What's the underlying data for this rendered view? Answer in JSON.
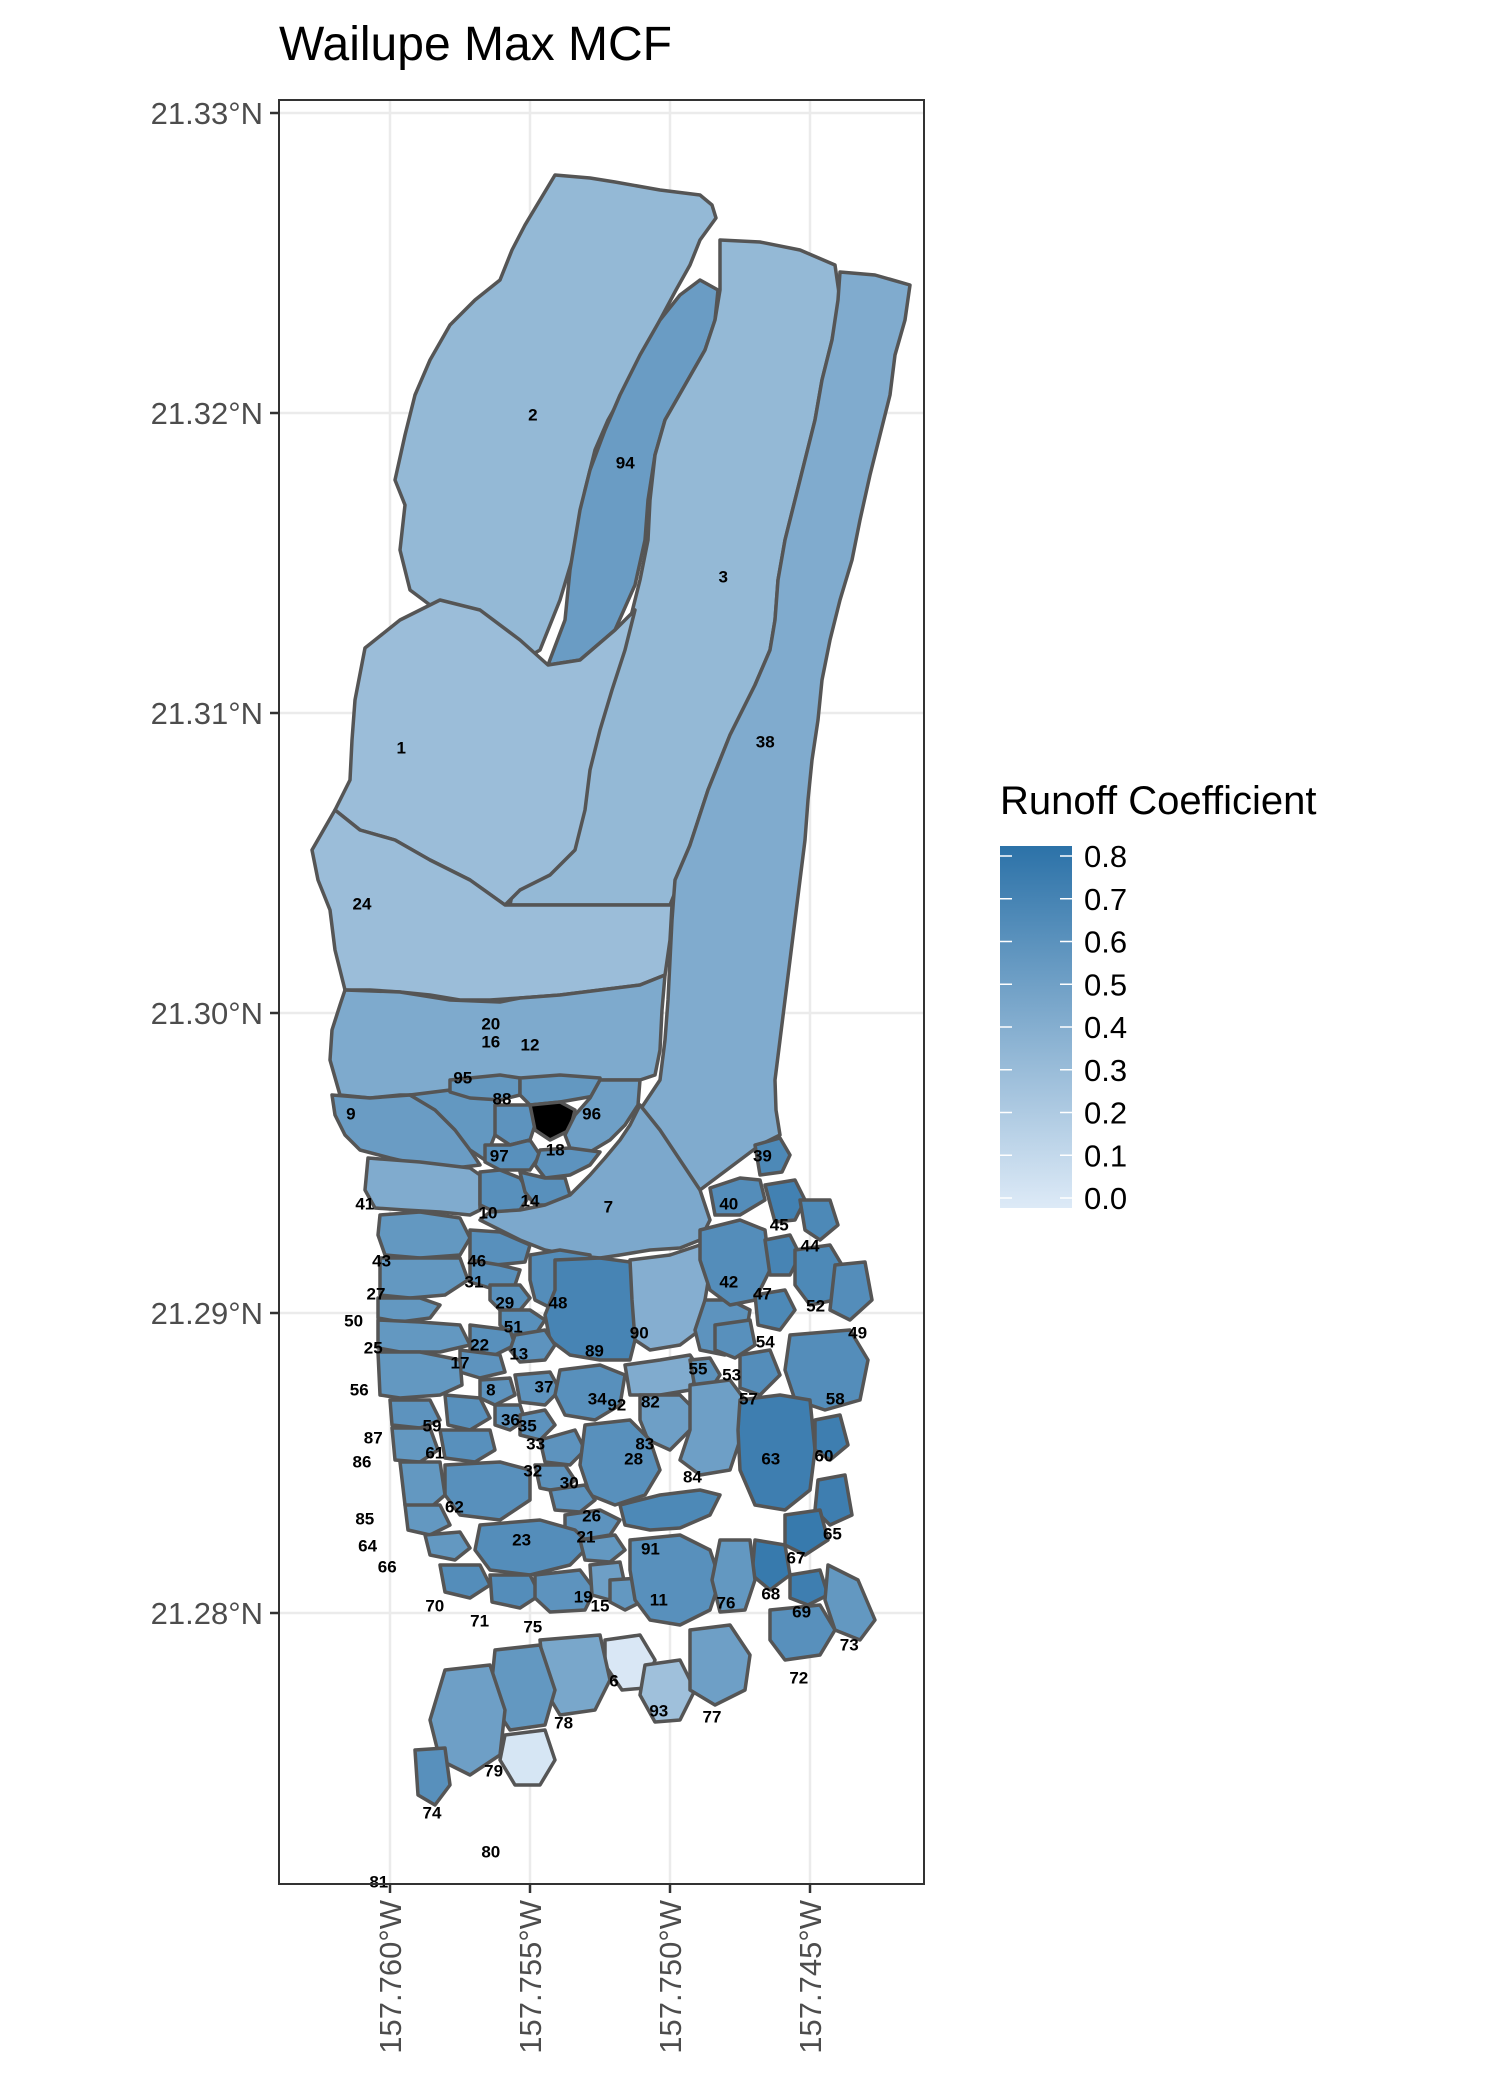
{
  "title": "Wailupe Max MCF",
  "axes": {
    "y_ticks": [
      "21.33°N",
      "21.32°N",
      "21.31°N",
      "21.30°N",
      "21.29°N",
      "21.28°N"
    ],
    "x_ticks": [
      "157.760°W",
      "157.755°W",
      "157.750°W",
      "157.745°W"
    ]
  },
  "legend": {
    "title": "Runoff Coefficient",
    "labels": [
      "0.8",
      "0.7",
      "0.6",
      "0.5",
      "0.4",
      "0.3",
      "0.2",
      "0.1",
      "0.0"
    ],
    "color_low": "#ddeaf7",
    "color_high": "#2c72a8"
  },
  "chart_data": {
    "type": "choropleth",
    "title": "Wailupe Max MCF",
    "value_label": "Runoff Coefficient",
    "lat_range": [
      21.2715,
      21.3305
    ],
    "lon_range": [
      -157.7641,
      -157.7418
    ],
    "color_scale": {
      "min": 0.0,
      "max": 0.8,
      "low": "#ddeaf7",
      "high": "#2c72a8"
    },
    "regions": [
      {
        "id": "1",
        "value": 0.3,
        "lon": -157.7596,
        "lat": 21.3088
      },
      {
        "id": "2",
        "value": 0.33,
        "lon": -157.7549,
        "lat": 21.3199
      },
      {
        "id": "3",
        "value": 0.33,
        "lon": -157.7481,
        "lat": 21.3145
      },
      {
        "id": "6",
        "value": 0.02,
        "lon": -157.752,
        "lat": 21.2777
      },
      {
        "id": "7",
        "value": 0.44,
        "lon": -157.7522,
        "lat": 21.2935
      },
      {
        "id": "8",
        "value": 0.58,
        "lon": -157.7564,
        "lat": 21.2874
      },
      {
        "id": "9",
        "value": 0.52,
        "lon": -157.7614,
        "lat": 21.2966
      },
      {
        "id": "10",
        "value": 0.6,
        "lon": -157.7565,
        "lat": 21.2933
      },
      {
        "id": "11",
        "value": 0.6,
        "lon": -157.7504,
        "lat": 21.2804
      },
      {
        "id": "12",
        "value": 0.55,
        "lon": -157.755,
        "lat": 21.2989
      },
      {
        "id": "13",
        "value": 0.58,
        "lon": -157.7554,
        "lat": 21.2886
      },
      {
        "id": "14",
        "value": 0.6,
        "lon": -157.755,
        "lat": 21.2937
      },
      {
        "id": "15",
        "value": 0.55,
        "lon": -157.7525,
        "lat": 21.2802
      },
      {
        "id": "16",
        "value": 0.55,
        "lon": -157.7564,
        "lat": 21.299
      },
      {
        "id": "17",
        "value": 0.58,
        "lon": -157.7575,
        "lat": 21.2883
      },
      {
        "id": "18",
        "value": 0.58,
        "lon": -157.7541,
        "lat": 21.2954
      },
      {
        "id": "19",
        "value": 0.5,
        "lon": -157.7531,
        "lat": 21.2805
      },
      {
        "id": "20",
        "value": 0.43,
        "lon": -157.7564,
        "lat": 21.2996
      },
      {
        "id": "21",
        "value": 0.55,
        "lon": -157.753,
        "lat": 21.2825
      },
      {
        "id": "22",
        "value": 0.6,
        "lon": -157.7568,
        "lat": 21.2889
      },
      {
        "id": "23",
        "value": 0.62,
        "lon": -157.7553,
        "lat": 21.2824
      },
      {
        "id": "24",
        "value": 0.3,
        "lon": -157.761,
        "lat": 21.3036
      },
      {
        "id": "25",
        "value": 0.55,
        "lon": -157.7606,
        "lat": 21.2888
      },
      {
        "id": "26",
        "value": 0.58,
        "lon": -157.7528,
        "lat": 21.2832
      },
      {
        "id": "27",
        "value": 0.55,
        "lon": -157.7605,
        "lat": 21.2906
      },
      {
        "id": "28",
        "value": 0.6,
        "lon": -157.7513,
        "lat": 21.2851
      },
      {
        "id": "29",
        "value": 0.6,
        "lon": -157.7559,
        "lat": 21.2903
      },
      {
        "id": "30",
        "value": 0.58,
        "lon": -157.7536,
        "lat": 21.2843
      },
      {
        "id": "31",
        "value": 0.6,
        "lon": -157.757,
        "lat": 21.291
      },
      {
        "id": "32",
        "value": 0.58,
        "lon": -157.7549,
        "lat": 21.2847
      },
      {
        "id": "33",
        "value": 0.58,
        "lon": -157.7548,
        "lat": 21.2856
      },
      {
        "id": "34",
        "value": 0.6,
        "lon": -157.7526,
        "lat": 21.2871
      },
      {
        "id": "35",
        "value": 0.58,
        "lon": -157.7551,
        "lat": 21.2862
      },
      {
        "id": "36",
        "value": 0.58,
        "lon": -157.7557,
        "lat": 21.2864
      },
      {
        "id": "37",
        "value": 0.58,
        "lon": -157.7545,
        "lat": 21.2875
      },
      {
        "id": "38",
        "value": 0.42,
        "lon": -157.7466,
        "lat": 21.309
      },
      {
        "id": "39",
        "value": 0.65,
        "lon": -157.7467,
        "lat": 21.2952
      },
      {
        "id": "40",
        "value": 0.62,
        "lon": -157.7479,
        "lat": 21.2936
      },
      {
        "id": "41",
        "value": 0.42,
        "lon": -157.7609,
        "lat": 21.2936
      },
      {
        "id": "42",
        "value": 0.62,
        "lon": -157.7479,
        "lat": 21.291
      },
      {
        "id": "43",
        "value": 0.55,
        "lon": -157.7603,
        "lat": 21.2917
      },
      {
        "id": "44",
        "value": 0.65,
        "lon": -157.745,
        "lat": 21.2922
      },
      {
        "id": "45",
        "value": 0.7,
        "lon": -157.7461,
        "lat": 21.2929
      },
      {
        "id": "46",
        "value": 0.6,
        "lon": -157.7569,
        "lat": 21.2917
      },
      {
        "id": "47",
        "value": 0.68,
        "lon": -157.7467,
        "lat": 21.2906
      },
      {
        "id": "48",
        "value": 0.62,
        "lon": -157.754,
        "lat": 21.2903
      },
      {
        "id": "49",
        "value": 0.62,
        "lon": -157.7433,
        "lat": 21.2893
      },
      {
        "id": "50",
        "value": 0.55,
        "lon": -157.7613,
        "lat": 21.2897
      },
      {
        "id": "51",
        "value": 0.6,
        "lon": -157.7556,
        "lat": 21.2895
      },
      {
        "id": "52",
        "value": 0.65,
        "lon": -157.7448,
        "lat": 21.2902
      },
      {
        "id": "53",
        "value": 0.6,
        "lon": -157.7478,
        "lat": 21.2879
      },
      {
        "id": "54",
        "value": 0.65,
        "lon": -157.7466,
        "lat": 21.289
      },
      {
        "id": "55",
        "value": 0.58,
        "lon": -157.749,
        "lat": 21.2881
      },
      {
        "id": "56",
        "value": 0.55,
        "lon": -157.7611,
        "lat": 21.2874
      },
      {
        "id": "57",
        "value": 0.62,
        "lon": -157.7472,
        "lat": 21.2871
      },
      {
        "id": "58",
        "value": 0.62,
        "lon": -157.7441,
        "lat": 21.2871
      },
      {
        "id": "59",
        "value": 0.6,
        "lon": -157.7585,
        "lat": 21.2862
      },
      {
        "id": "60",
        "value": 0.72,
        "lon": -157.7445,
        "lat": 21.2852
      },
      {
        "id": "61",
        "value": 0.6,
        "lon": -157.7584,
        "lat": 21.2853
      },
      {
        "id": "62",
        "value": 0.6,
        "lon": -157.7577,
        "lat": 21.2835
      },
      {
        "id": "63",
        "value": 0.72,
        "lon": -157.7464,
        "lat": 21.2851
      },
      {
        "id": "64",
        "value": 0.55,
        "lon": -157.7608,
        "lat": 21.2822
      },
      {
        "id": "65",
        "value": 0.72,
        "lon": -157.7442,
        "lat": 21.2826
      },
      {
        "id": "66",
        "value": 0.55,
        "lon": -157.7601,
        "lat": 21.2815
      },
      {
        "id": "67",
        "value": 0.75,
        "lon": -157.7455,
        "lat": 21.2818
      },
      {
        "id": "68",
        "value": 0.75,
        "lon": -157.7464,
        "lat": 21.2806
      },
      {
        "id": "69",
        "value": 0.72,
        "lon": -157.7453,
        "lat": 21.28
      },
      {
        "id": "70",
        "value": 0.62,
        "lon": -157.7584,
        "lat": 21.2802
      },
      {
        "id": "71",
        "value": 0.62,
        "lon": -157.7568,
        "lat": 21.2797
      },
      {
        "id": "72",
        "value": 0.6,
        "lon": -157.7454,
        "lat": 21.2778
      },
      {
        "id": "73",
        "value": 0.55,
        "lon": -157.7436,
        "lat": 21.2789
      },
      {
        "id": "74",
        "value": 0.5,
        "lon": -157.7585,
        "lat": 21.2733
      },
      {
        "id": "75",
        "value": 0.58,
        "lon": -157.7549,
        "lat": 21.2795
      },
      {
        "id": "76",
        "value": 0.55,
        "lon": -157.748,
        "lat": 21.2803
      },
      {
        "id": "77",
        "value": 0.5,
        "lon": -157.7485,
        "lat": 21.2765
      },
      {
        "id": "78",
        "value": 0.45,
        "lon": -157.7538,
        "lat": 21.2763
      },
      {
        "id": "79",
        "value": 0.55,
        "lon": -157.7563,
        "lat": 21.2747
      },
      {
        "id": "80",
        "value": 0.03,
        "lon": -157.7564,
        "lat": 21.272
      },
      {
        "id": "81",
        "value": 0.6,
        "lon": -157.7604,
        "lat": 21.271
      },
      {
        "id": "82",
        "value": 0.58,
        "lon": -157.7507,
        "lat": 21.287
      },
      {
        "id": "83",
        "value": 0.5,
        "lon": -157.7509,
        "lat": 21.2856
      },
      {
        "id": "84",
        "value": 0.5,
        "lon": -157.7492,
        "lat": 21.2845
      },
      {
        "id": "85",
        "value": 0.55,
        "lon": -157.7609,
        "lat": 21.2831
      },
      {
        "id": "86",
        "value": 0.55,
        "lon": -157.761,
        "lat": 21.285
      },
      {
        "id": "87",
        "value": 0.58,
        "lon": -157.7606,
        "lat": 21.2858
      },
      {
        "id": "88",
        "value": 0.58,
        "lon": -157.756,
        "lat": 21.2971
      },
      {
        "id": "89",
        "value": 0.68,
        "lon": -157.7527,
        "lat": 21.2887
      },
      {
        "id": "90",
        "value": 0.4,
        "lon": -157.7511,
        "lat": 21.2893
      },
      {
        "id": "91",
        "value": 0.65,
        "lon": -157.7507,
        "lat": 21.2821
      },
      {
        "id": "92",
        "value": 0.42,
        "lon": -157.7519,
        "lat": 21.2869
      },
      {
        "id": "93",
        "value": 0.28,
        "lon": -157.7504,
        "lat": 21.2767
      },
      {
        "id": "94",
        "value": 0.52,
        "lon": -157.7516,
        "lat": 21.3183
      },
      {
        "id": "95",
        "value": 0.55,
        "lon": -157.7574,
        "lat": 21.2978
      },
      {
        "id": "96",
        "value": 0.5,
        "lon": -157.7528,
        "lat": 21.2966
      },
      {
        "id": "97",
        "value": 0.6,
        "lon": -157.7561,
        "lat": 21.2952
      }
    ]
  }
}
